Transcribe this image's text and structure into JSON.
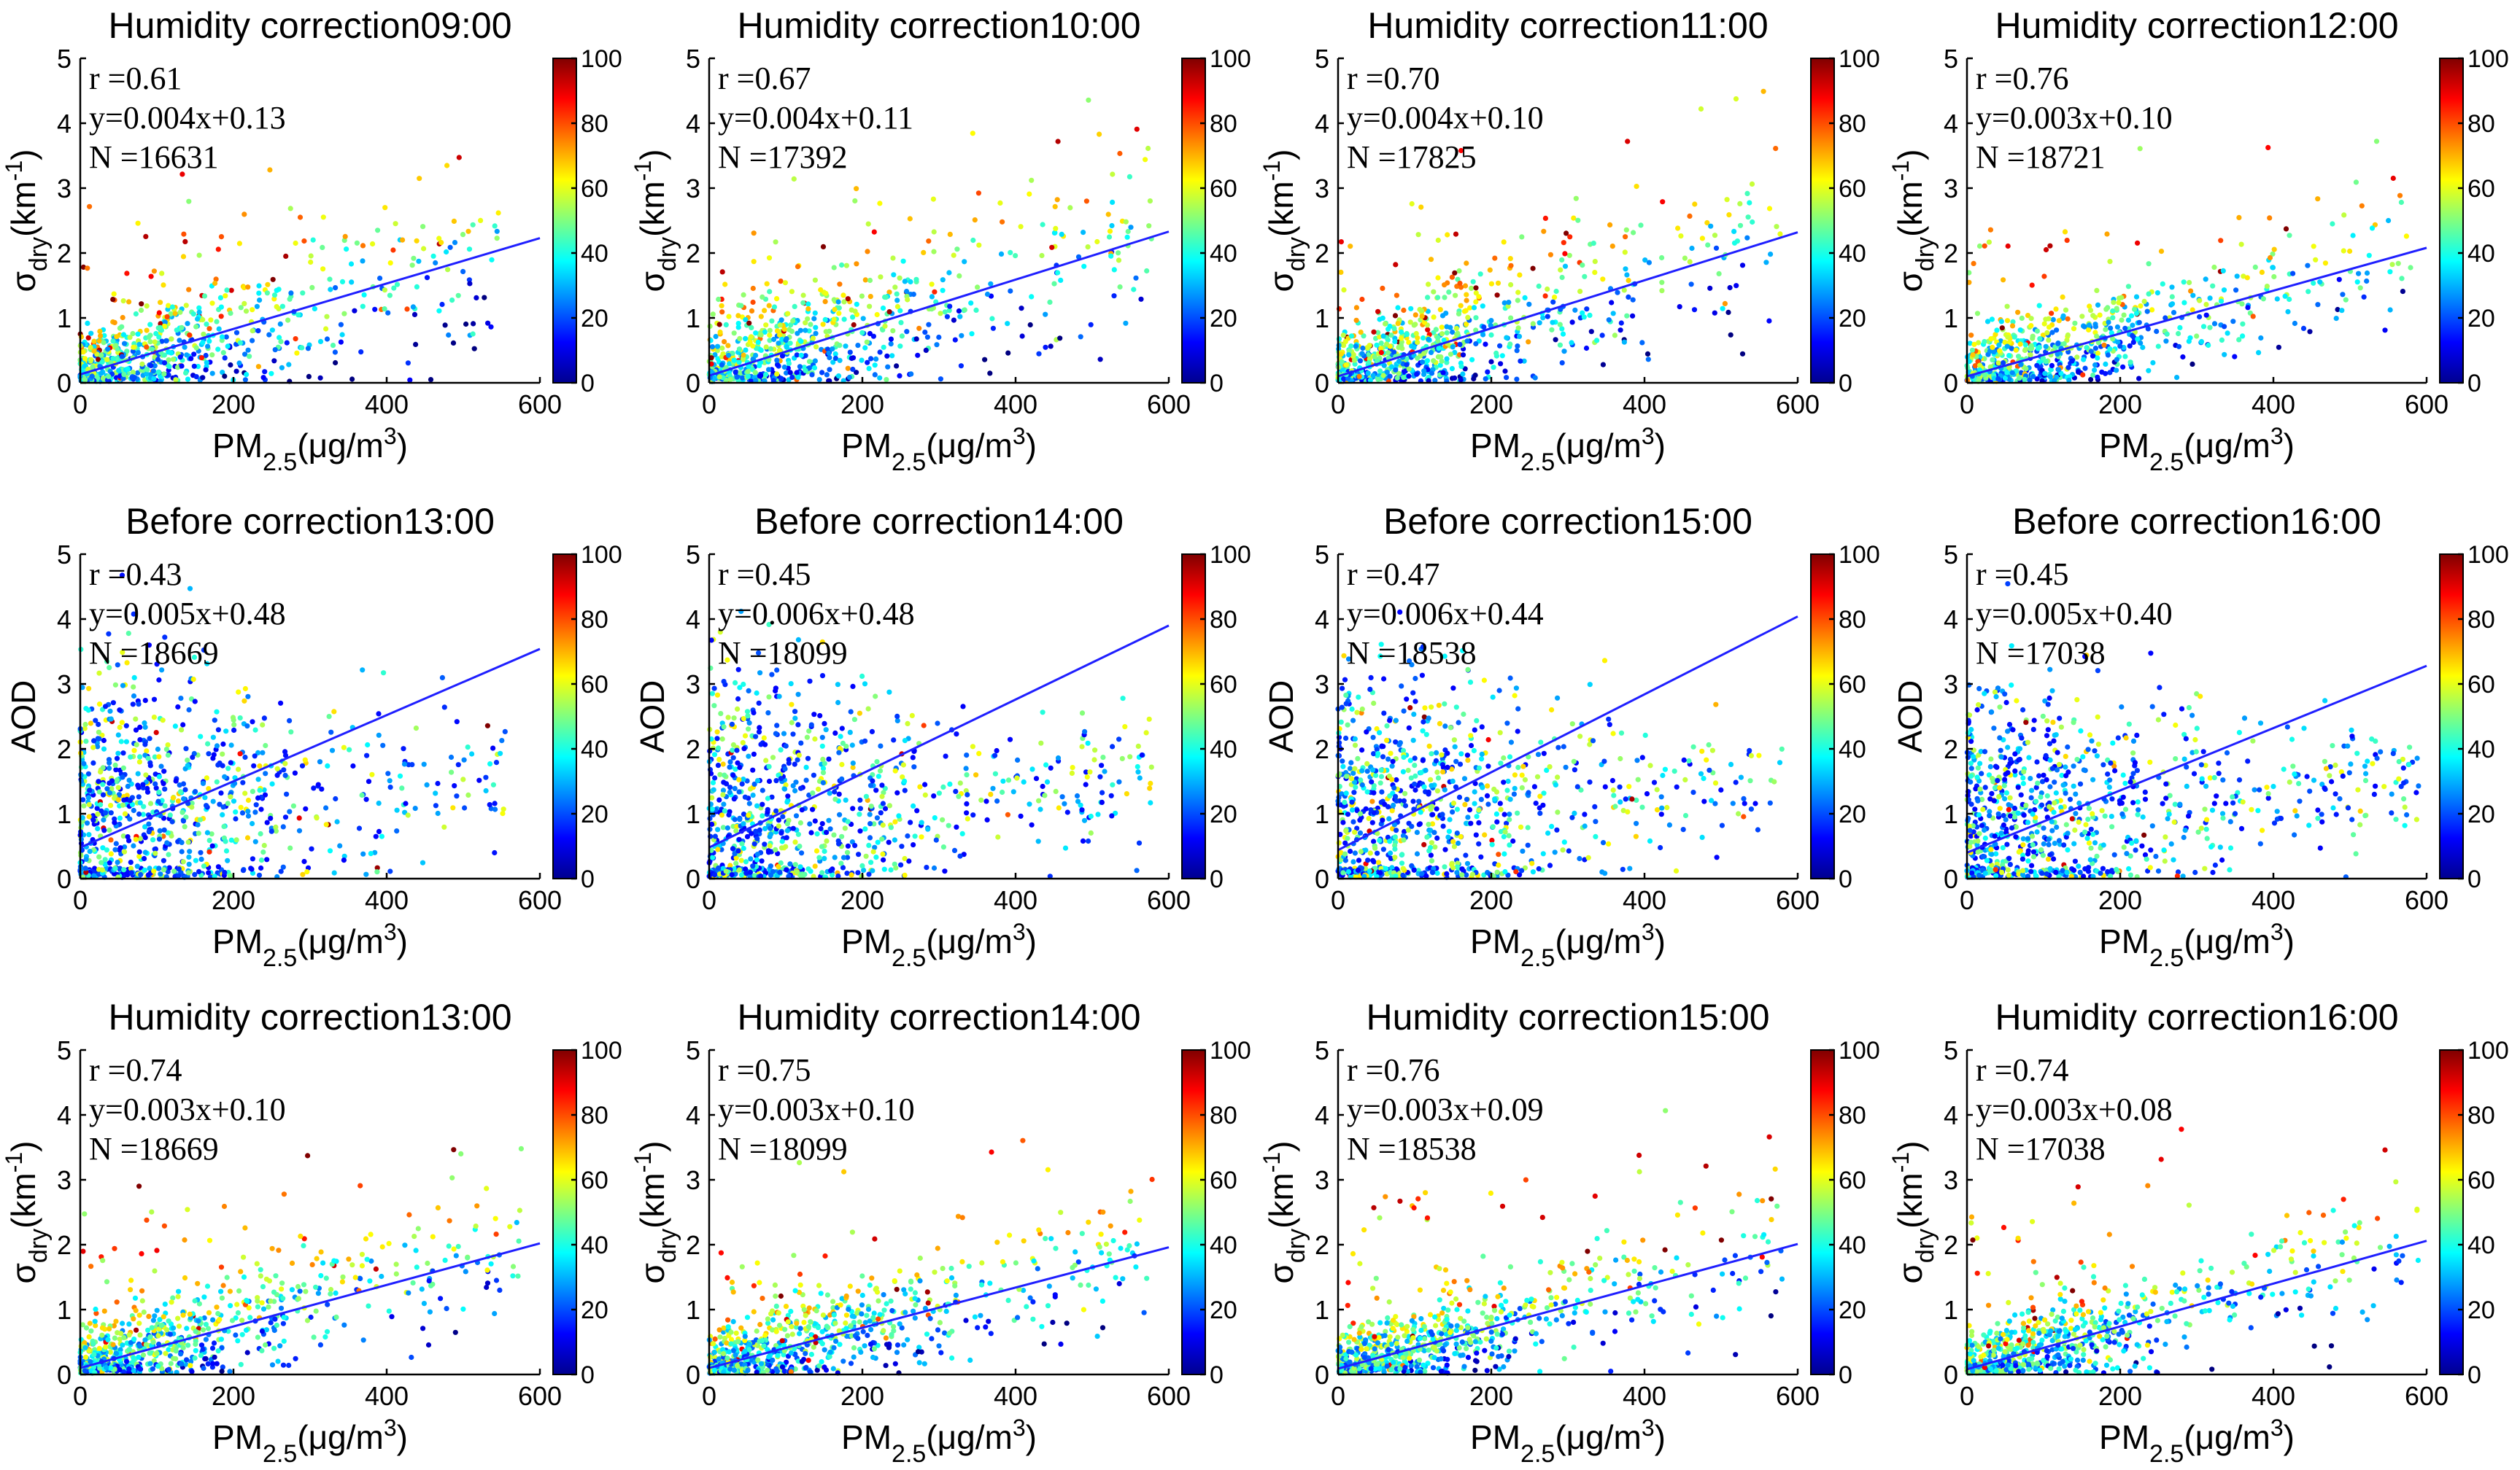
{
  "figure": {
    "background": "#ffffff",
    "fit_line_color": "#1f1fff",
    "colormap": [
      "#00008f",
      "#0000ff",
      "#0080ff",
      "#00ffff",
      "#80ff80",
      "#ffff00",
      "#ff8000",
      "#ff0000",
      "#800000"
    ]
  },
  "chart_data": [
    {
      "type": "scatter",
      "title": "Humidity correction09:00",
      "ylabel_kind": "sigma",
      "xlabel": "PM2.5(μg/m3)",
      "ylabel": "σdry(km-1)",
      "xlim": [
        0,
        600
      ],
      "ylim": [
        0,
        5
      ],
      "xticks": [
        "0",
        "200",
        "400",
        "600"
      ],
      "yticks": [
        "0",
        "1",
        "2",
        "3",
        "4",
        "5"
      ],
      "colorbar": {
        "range": [
          0,
          100
        ],
        "ticks": [
          "0",
          "20",
          "40",
          "60",
          "80",
          "100"
        ]
      },
      "stats": {
        "r": "r =0.61",
        "equation": "y=0.004x+0.13",
        "n": "N =16631"
      },
      "fit": {
        "slope": 0.0035,
        "intercept": 0.13
      },
      "points_summary": {
        "count": 16631,
        "x_max": 550,
        "y_spread": 0.55,
        "high_point_rate": 0.35
      }
    },
    {
      "type": "scatter",
      "title": "Humidity correction10:00",
      "ylabel_kind": "sigma",
      "xlabel": "PM2.5(μg/m3)",
      "ylabel": "σdry(km-1)",
      "xlim": [
        0,
        600
      ],
      "ylim": [
        0,
        5
      ],
      "xticks": [
        "0",
        "200",
        "400",
        "600"
      ],
      "yticks": [
        "0",
        "1",
        "2",
        "3",
        "4",
        "5"
      ],
      "colorbar": {
        "range": [
          0,
          100
        ],
        "ticks": [
          "0",
          "20",
          "40",
          "60",
          "80",
          "100"
        ]
      },
      "stats": {
        "r": "r =0.67",
        "equation": "y=0.004x+0.11",
        "n": "N =17392"
      },
      "fit": {
        "slope": 0.0037,
        "intercept": 0.11
      },
      "points_summary": {
        "count": 17392,
        "x_max": 580,
        "y_spread": 0.6,
        "high_point_rate": 0.35
      }
    },
    {
      "type": "scatter",
      "title": "Humidity correction11:00",
      "ylabel_kind": "sigma",
      "xlabel": "PM2.5(μg/m3)",
      "ylabel": "σdry(km-1)",
      "xlim": [
        0,
        600
      ],
      "ylim": [
        0,
        5
      ],
      "xticks": [
        "0",
        "200",
        "400",
        "600"
      ],
      "yticks": [
        "0",
        "1",
        "2",
        "3",
        "4",
        "5"
      ],
      "colorbar": {
        "range": [
          0,
          100
        ],
        "ticks": [
          "0",
          "20",
          "40",
          "60",
          "80",
          "100"
        ]
      },
      "stats": {
        "r": "r =0.70",
        "equation": "y=0.004x+0.10",
        "n": "N =17825"
      },
      "fit": {
        "slope": 0.0037,
        "intercept": 0.1
      },
      "points_summary": {
        "count": 17825,
        "x_max": 580,
        "y_spread": 0.55,
        "high_point_rate": 0.3
      }
    },
    {
      "type": "scatter",
      "title": "Humidity correction12:00",
      "ylabel_kind": "sigma",
      "xlabel": "PM2.5(μg/m3)",
      "ylabel": "σdry(km-1)",
      "xlim": [
        0,
        600
      ],
      "ylim": [
        0,
        5
      ],
      "xticks": [
        "0",
        "200",
        "400",
        "600"
      ],
      "yticks": [
        "0",
        "1",
        "2",
        "3",
        "4",
        "5"
      ],
      "colorbar": {
        "range": [
          0,
          100
        ],
        "ticks": [
          "0",
          "20",
          "40",
          "60",
          "80",
          "100"
        ]
      },
      "stats": {
        "r": "r =0.76",
        "equation": "y=0.003x+0.10",
        "n": "N =18721"
      },
      "fit": {
        "slope": 0.0033,
        "intercept": 0.1
      },
      "points_summary": {
        "count": 18721,
        "x_max": 580,
        "y_spread": 0.45,
        "high_point_rate": 0.3
      }
    },
    {
      "type": "scatter",
      "title": "Before correction13:00",
      "ylabel_kind": "aod",
      "xlabel": "PM2.5(μg/m3)",
      "ylabel": "AOD",
      "xlim": [
        0,
        600
      ],
      "ylim": [
        0,
        5
      ],
      "xticks": [
        "0",
        "200",
        "400",
        "600"
      ],
      "yticks": [
        "0",
        "1",
        "2",
        "3",
        "4",
        "5"
      ],
      "colorbar": {
        "range": [
          0,
          100
        ],
        "ticks": [
          "0",
          "20",
          "40",
          "60",
          "80",
          "100"
        ]
      },
      "stats": {
        "r": "r =0.43",
        "equation": "y=0.005x+0.48",
        "n": "N =18669"
      },
      "fit": {
        "slope": 0.0051,
        "intercept": 0.48
      },
      "points_summary": {
        "count": 18669,
        "x_max": 560,
        "y_spread": 1.2,
        "high_point_rate": 0.2
      }
    },
    {
      "type": "scatter",
      "title": "Before correction14:00",
      "ylabel_kind": "aod",
      "xlabel": "PM2.5(μg/m3)",
      "ylabel": "AOD",
      "xlim": [
        0,
        600
      ],
      "ylim": [
        0,
        5
      ],
      "xticks": [
        "0",
        "200",
        "400",
        "600"
      ],
      "yticks": [
        "0",
        "1",
        "2",
        "3",
        "4",
        "5"
      ],
      "colorbar": {
        "range": [
          0,
          100
        ],
        "ticks": [
          "0",
          "20",
          "40",
          "60",
          "80",
          "100"
        ]
      },
      "stats": {
        "r": "r =0.45",
        "equation": "y=0.006x+0.48",
        "n": "N =18099"
      },
      "fit": {
        "slope": 0.0057,
        "intercept": 0.48
      },
      "points_summary": {
        "count": 18099,
        "x_max": 580,
        "y_spread": 1.2,
        "high_point_rate": 0.2
      }
    },
    {
      "type": "scatter",
      "title": "Before correction15:00",
      "ylabel_kind": "aod",
      "xlabel": "PM2.5(μg/m3)",
      "ylabel": "AOD",
      "xlim": [
        0,
        600
      ],
      "ylim": [
        0,
        5
      ],
      "xticks": [
        "0",
        "200",
        "400",
        "600"
      ],
      "yticks": [
        "0",
        "1",
        "2",
        "3",
        "4",
        "5"
      ],
      "colorbar": {
        "range": [
          0,
          100
        ],
        "ticks": [
          "0",
          "20",
          "40",
          "60",
          "80",
          "100"
        ]
      },
      "stats": {
        "r": "r =0.47",
        "equation": "y=0.006x+0.44",
        "n": "N =18538"
      },
      "fit": {
        "slope": 0.006,
        "intercept": 0.44
      },
      "points_summary": {
        "count": 18538,
        "x_max": 580,
        "y_spread": 1.2,
        "high_point_rate": 0.2
      }
    },
    {
      "type": "scatter",
      "title": "Before correction16:00",
      "ylabel_kind": "aod",
      "xlabel": "PM2.5(μg/m3)",
      "ylabel": "AOD",
      "xlim": [
        0,
        600
      ],
      "ylim": [
        0,
        5
      ],
      "xticks": [
        "0",
        "200",
        "400",
        "600"
      ],
      "yticks": [
        "0",
        "1",
        "2",
        "3",
        "4",
        "5"
      ],
      "colorbar": {
        "range": [
          0,
          100
        ],
        "ticks": [
          "0",
          "20",
          "40",
          "60",
          "80",
          "100"
        ]
      },
      "stats": {
        "r": "r =0.45",
        "equation": "y=0.005x+0.40",
        "n": "N =17038"
      },
      "fit": {
        "slope": 0.0048,
        "intercept": 0.4
      },
      "points_summary": {
        "count": 17038,
        "x_max": 590,
        "y_spread": 1.1,
        "high_point_rate": 0.2
      }
    },
    {
      "type": "scatter",
      "title": "Humidity correction13:00",
      "ylabel_kind": "sigma",
      "xlabel": "PM2.5(μg/m3)",
      "ylabel": "σdry(km-1)",
      "xlim": [
        0,
        600
      ],
      "ylim": [
        0,
        5
      ],
      "xticks": [
        "0",
        "200",
        "400",
        "600"
      ],
      "yticks": [
        "0",
        "1",
        "2",
        "3",
        "4",
        "5"
      ],
      "colorbar": {
        "range": [
          0,
          100
        ],
        "ticks": [
          "0",
          "20",
          "40",
          "60",
          "80",
          "100"
        ]
      },
      "stats": {
        "r": "r =0.74",
        "equation": "y=0.003x+0.10",
        "n": "N =18669"
      },
      "fit": {
        "slope": 0.0032,
        "intercept": 0.1
      },
      "points_summary": {
        "count": 18669,
        "x_max": 580,
        "y_spread": 0.42,
        "high_point_rate": 0.25
      }
    },
    {
      "type": "scatter",
      "title": "Humidity correction14:00",
      "ylabel_kind": "sigma",
      "xlabel": "PM2.5(μg/m3)",
      "ylabel": "σdry(km-1)",
      "xlim": [
        0,
        600
      ],
      "ylim": [
        0,
        5
      ],
      "xticks": [
        "0",
        "200",
        "400",
        "600"
      ],
      "yticks": [
        "0",
        "1",
        "2",
        "3",
        "4",
        "5"
      ],
      "colorbar": {
        "range": [
          0,
          100
        ],
        "ticks": [
          "0",
          "20",
          "40",
          "60",
          "80",
          "100"
        ]
      },
      "stats": {
        "r": "r =0.75",
        "equation": "y=0.003x+0.10",
        "n": "N =18099"
      },
      "fit": {
        "slope": 0.0031,
        "intercept": 0.1
      },
      "points_summary": {
        "count": 18099,
        "x_max": 580,
        "y_spread": 0.42,
        "high_point_rate": 0.25
      }
    },
    {
      "type": "scatter",
      "title": "Humidity correction15:00",
      "ylabel_kind": "sigma",
      "xlabel": "PM2.5(μg/m3)",
      "ylabel": "σdry(km-1)",
      "xlim": [
        0,
        600
      ],
      "ylim": [
        0,
        5
      ],
      "xticks": [
        "0",
        "200",
        "400",
        "600"
      ],
      "yticks": [
        "0",
        "1",
        "2",
        "3",
        "4",
        "5"
      ],
      "colorbar": {
        "range": [
          0,
          100
        ],
        "ticks": [
          "0",
          "20",
          "40",
          "60",
          "80",
          "100"
        ]
      },
      "stats": {
        "r": "r =0.76",
        "equation": "y=0.003x+0.09",
        "n": "N =18538"
      },
      "fit": {
        "slope": 0.0032,
        "intercept": 0.09
      },
      "points_summary": {
        "count": 18538,
        "x_max": 580,
        "y_spread": 0.42,
        "high_point_rate": 0.25
      }
    },
    {
      "type": "scatter",
      "title": "Humidity correction16:00",
      "ylabel_kind": "sigma",
      "xlabel": "PM2.5(μg/m3)",
      "ylabel": "σdry(km-1)",
      "xlim": [
        0,
        600
      ],
      "ylim": [
        0,
        5
      ],
      "xticks": [
        "0",
        "200",
        "400",
        "600"
      ],
      "yticks": [
        "0",
        "1",
        "2",
        "3",
        "4",
        "5"
      ],
      "colorbar": {
        "range": [
          0,
          100
        ],
        "ticks": [
          "0",
          "20",
          "40",
          "60",
          "80",
          "100"
        ]
      },
      "stats": {
        "r": "r =0.74",
        "equation": "y=0.003x+0.08",
        "n": "N =17038"
      },
      "fit": {
        "slope": 0.0033,
        "intercept": 0.08
      },
      "points_summary": {
        "count": 17038,
        "x_max": 590,
        "y_spread": 0.42,
        "high_point_rate": 0.25
      }
    }
  ]
}
